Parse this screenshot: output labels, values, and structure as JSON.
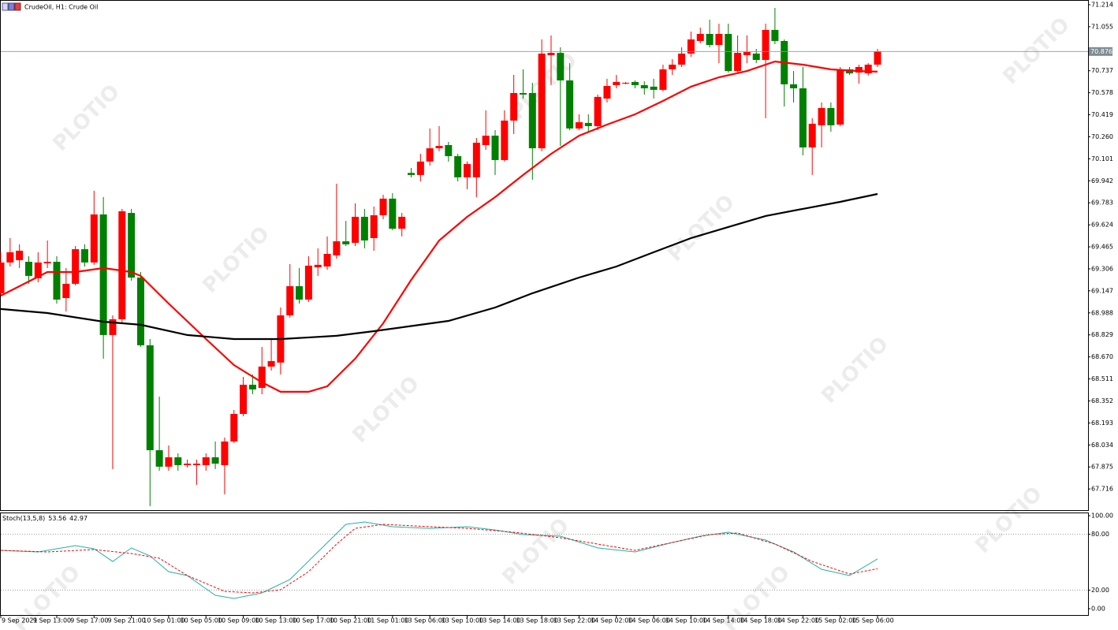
{
  "watermark": "PLOTIO",
  "chart_data": [
    {
      "type": "candlestick",
      "title": "CrudeOil, H1:  Crude Oil",
      "categories": [
        "9 Sep 2021",
        null,
        null,
        null,
        null,
        null,
        "9 Sep 13:00",
        null,
        null,
        null,
        "9 Sep 17:00",
        null,
        null,
        null,
        "9 Sep 21:00",
        null,
        null,
        null,
        "10 Sep 01:00",
        null,
        null,
        null,
        "10 Sep 05:00",
        null,
        null,
        null,
        "10 Sep 09:00",
        null,
        null,
        null,
        "10 Sep 13:00",
        null,
        null,
        null,
        "10 Sep 17:00",
        null,
        null,
        null,
        "10 Sep 21:00",
        null,
        null,
        null,
        "11 Sep 01:00",
        null,
        null,
        null,
        "13 Sep 06:00",
        null,
        null,
        null,
        "13 Sep 10:00",
        null,
        null,
        null,
        "13 Sep 14:00",
        null,
        null,
        null,
        "13 Sep 18:00",
        null,
        null,
        null,
        "13 Sep 22:00",
        null,
        null,
        null,
        "14 Sep 02:00",
        null,
        null,
        null,
        "14 Sep 06:00",
        null,
        null,
        null,
        "14 Sep 10:00",
        null,
        null,
        null,
        "14 Sep 14:00",
        null,
        null,
        null,
        "14 Sep 18:00",
        null,
        null,
        null,
        "14 Sep 22:00",
        null,
        null,
        null,
        "15 Sep 02:00",
        null,
        null,
        null,
        "15 Sep 06:00"
      ],
      "open": [
        69.13,
        69.352,
        69.369,
        69.357,
        69.238,
        69.346,
        69.357,
        69.095,
        69.198,
        69.448,
        69.352,
        69.699,
        68.828,
        68.942,
        69.71,
        69.243,
        68.754,
        67.996,
        67.877,
        67.945,
        67.888,
        67.888,
        67.888,
        67.945,
        67.888,
        68.059,
        68.258,
        68.469,
        68.446,
        68.6,
        68.629,
        68.97,
        69.181,
        69.084,
        69.317,
        69.323,
        69.403,
        69.505,
        69.494,
        69.682,
        69.528,
        69.693,
        69.813,
        69.596,
        69.999,
        69.984,
        70.081,
        70.177,
        70.2,
        70.12,
        69.967,
        69.967,
        70.2,
        70.268,
        70.092,
        70.377,
        70.576,
        70.576,
        70.177,
        70.849,
        70.866,
        70.667,
        70.32,
        70.36,
        70.337,
        70.536,
        70.633,
        70.644,
        70.656,
        70.633,
        70.622,
        70.599,
        70.747,
        70.781,
        70.861,
        70.952,
        71.003,
        70.923,
        71.003,
        70.735,
        70.849,
        70.861,
        70.815,
        71.032,
        70.952,
        70.639,
        70.61,
        70.183,
        70.343,
        70.468,
        70.348,
        70.747,
        70.724,
        70.718,
        70.781
      ],
      "high": [
        69.426,
        69.528,
        69.483,
        69.397,
        69.426,
        69.511,
        69.397,
        69.312,
        69.471,
        69.483,
        69.87,
        69.824,
        68.97,
        69.739,
        69.739,
        69.283,
        68.799,
        68.383,
        68.03,
        67.973,
        67.928,
        67.928,
        67.973,
        68.059,
        68.087,
        68.287,
        68.526,
        68.543,
        68.742,
        68.799,
        69.027,
        69.34,
        69.312,
        69.397,
        69.454,
        69.54,
        69.921,
        69.653,
        69.779,
        69.739,
        69.756,
        69.841,
        69.853,
        69.71,
        70.035,
        70.137,
        70.32,
        70.337,
        70.223,
        70.137,
        70.081,
        70.251,
        70.451,
        70.308,
        70.451,
        70.707,
        70.747,
        70.65,
        70.963,
        70.992,
        70.906,
        70.792,
        70.422,
        70.422,
        70.565,
        70.679,
        70.707,
        70.656,
        70.667,
        70.661,
        70.679,
        70.781,
        70.821,
        70.906,
        71.02,
        71.049,
        71.106,
        71.077,
        71.077,
        70.992,
        70.992,
        70.895,
        71.077,
        71.191,
        70.963,
        70.735,
        70.764,
        70.394,
        70.508,
        70.508,
        70.764,
        70.764,
        70.781,
        70.792,
        70.895
      ],
      "low": [
        69.112,
        69.323,
        69.312,
        69.198,
        69.209,
        69.312,
        69.055,
        68.998,
        69.186,
        69.323,
        69.335,
        68.657,
        67.86,
        68.913,
        69.221,
        68.742,
        67.592,
        67.848,
        67.848,
        67.848,
        67.871,
        67.746,
        67.848,
        67.86,
        67.677,
        68.047,
        68.241,
        68.4,
        68.4,
        68.571,
        68.543,
        68.953,
        69.055,
        69.067,
        69.255,
        69.3,
        69.38,
        69.471,
        69.471,
        69.454,
        69.437,
        69.665,
        69.585,
        69.54,
        69.967,
        69.938,
        70.052,
        70.155,
        70.081,
        69.938,
        69.881,
        69.824,
        70.166,
        69.984,
        70.081,
        70.28,
        70.536,
        69.95,
        70.155,
        70.633,
        70.194,
        70.308,
        70.308,
        70.291,
        70.308,
        70.508,
        70.61,
        70.639,
        70.61,
        70.565,
        70.536,
        70.587,
        70.707,
        70.764,
        70.838,
        70.935,
        70.906,
        70.792,
        70.724,
        70.724,
        70.792,
        70.792,
        70.394,
        70.929,
        70.479,
        70.508,
        70.126,
        69.984,
        70.183,
        70.297,
        70.337,
        70.707,
        70.644,
        70.701,
        70.764
      ],
      "close": [
        69.352,
        69.426,
        69.437,
        69.255,
        69.352,
        69.357,
        69.084,
        69.198,
        69.448,
        69.352,
        69.699,
        68.828,
        68.942,
        69.722,
        69.243,
        68.754,
        67.996,
        67.877,
        67.945,
        67.888,
        67.899,
        67.899,
        67.945,
        67.899,
        68.059,
        68.258,
        68.469,
        68.435,
        68.6,
        68.64,
        68.97,
        69.181,
        69.084,
        69.329,
        69.335,
        69.414,
        69.505,
        69.483,
        69.682,
        69.511,
        69.693,
        69.813,
        69.596,
        69.682,
        69.984,
        70.081,
        70.177,
        70.194,
        70.12,
        69.967,
        70.063,
        70.217,
        70.268,
        70.092,
        70.377,
        70.576,
        70.565,
        70.177,
        70.861,
        70.866,
        70.667,
        70.32,
        70.365,
        70.337,
        70.548,
        70.627,
        70.656,
        70.65,
        70.633,
        70.61,
        70.599,
        70.747,
        70.781,
        70.861,
        70.963,
        71.003,
        70.923,
        71.003,
        70.735,
        70.866,
        70.872,
        70.815,
        71.032,
        70.952,
        70.639,
        70.61,
        70.183,
        70.354,
        70.468,
        70.343,
        70.747,
        70.718,
        70.764,
        70.781,
        70.876
      ],
      "up_color": "#ff0000",
      "down_color": "#008000",
      "series": [
        {
          "color": "#ff0000",
          "x": [
            0,
            5,
            8,
            11,
            14,
            15,
            18,
            22,
            25,
            28,
            30,
            33,
            35,
            38,
            41,
            44,
            47,
            50,
            53,
            56,
            59,
            62,
            65,
            68,
            71,
            74,
            77,
            80,
            83,
            86,
            89,
            92,
            94
          ],
          "values": [
            69.112,
            69.283,
            69.283,
            69.312,
            69.283,
            69.255,
            69.055,
            68.799,
            68.611,
            68.486,
            68.418,
            68.418,
            68.458,
            68.657,
            68.913,
            69.226,
            69.511,
            69.682,
            69.824,
            69.984,
            70.137,
            70.268,
            70.348,
            70.422,
            70.519,
            70.622,
            70.69,
            70.735,
            70.804,
            70.781,
            70.747,
            70.735,
            70.73
          ]
        },
        {
          "color": "#000000",
          "x": [
            0,
            5,
            11,
            15,
            20,
            25,
            30,
            36,
            40,
            45,
            48,
            53,
            57,
            62,
            66,
            70,
            74,
            78,
            82,
            86,
            90,
            94
          ],
          "values": [
            69.016,
            68.987,
            68.924,
            68.902,
            68.828,
            68.799,
            68.799,
            68.822,
            68.856,
            68.902,
            68.93,
            69.027,
            69.13,
            69.243,
            69.323,
            69.426,
            69.528,
            69.608,
            69.688,
            69.739,
            69.79,
            69.847
          ]
        }
      ],
      "last_price": 70.876,
      "ylim": [
        67.563,
        71.248
      ],
      "yticks": [
        71.214,
        71.055,
        70.737,
        70.578,
        70.419,
        {
          "value": 70.26,
          "label": "70.260"
        },
        70.101,
        69.942,
        69.783,
        69.624,
        69.465,
        69.306,
        69.147,
        68.988,
        68.829,
        {
          "value": 68.67,
          "label": "68.670"
        },
        68.511,
        68.352,
        68.193,
        68.034,
        67.875,
        67.716
      ]
    },
    {
      "type": "line",
      "title": "Stoch(13,5,8)",
      "series": [
        {
          "color": "#20b2aa",
          "x": [
            0,
            4,
            8,
            10,
            12,
            14,
            16,
            18,
            20,
            23,
            25,
            28,
            31,
            34,
            37,
            39,
            42,
            46,
            50,
            53,
            56,
            60,
            64,
            68,
            72,
            75,
            78,
            82,
            85,
            88,
            91,
            94
          ],
          "values": [
            62.7,
            61.0,
            67.8,
            64.4,
            50.8,
            65.3,
            56.8,
            39.8,
            35.6,
            14.4,
            11.0,
            16.9,
            31.4,
            61.0,
            90.7,
            93.2,
            88.1,
            86.4,
            88.1,
            84.7,
            79.7,
            78.0,
            65.3,
            61.0,
            71.2,
            78.0,
            82.2,
            73.7,
            61.0,
            42.4,
            35.6,
            53.56
          ]
        },
        {
          "color": "#ff0000",
          "dashed": true,
          "x": [
            0,
            5,
            10,
            14,
            17,
            20,
            24,
            27,
            30,
            33,
            36,
            38,
            41,
            46,
            50,
            55,
            60,
            64,
            68,
            72,
            76,
            79,
            83,
            87,
            91,
            94
          ],
          "values": [
            62.7,
            61.0,
            63.6,
            59.3,
            54.2,
            35.6,
            18.6,
            16.9,
            20.3,
            39.8,
            69.5,
            86.4,
            90.7,
            88.1,
            86.4,
            82.2,
            76.3,
            69.5,
            62.7,
            71.2,
            79.7,
            81.4,
            69.5,
            50.8,
            37.3,
            42.97
          ]
        }
      ],
      "levels": [
        80,
        20
      ],
      "ylim": [
        -6.8,
        103.4
      ],
      "yticks": [
        {
          "value": 100,
          "label": "100.00"
        },
        {
          "value": 80,
          "label": "80.00"
        },
        {
          "value": 20,
          "label": "20.00"
        },
        {
          "value": 0,
          "label": "0.00"
        }
      ]
    }
  ]
}
